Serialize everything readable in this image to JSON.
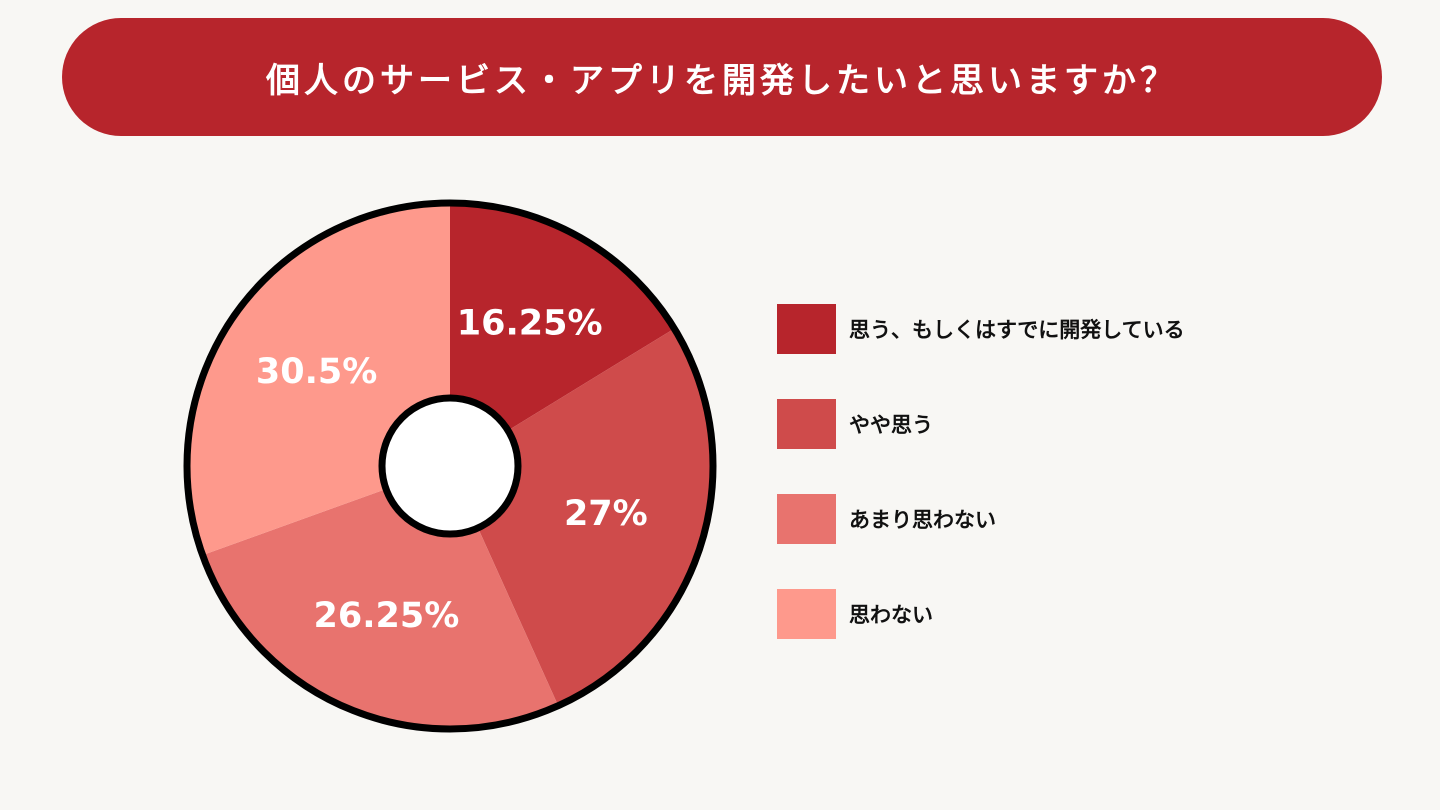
{
  "header": {
    "title": "個人のサービス・アプリを開発したいと思いますか？",
    "background": "#b7252c"
  },
  "chart_data": {
    "type": "pie",
    "variant": "donut",
    "title": "個人のサービス・アプリを開発したいと思いますか？",
    "categories": [
      "思う、もしくはすでに開発している",
      "やや思う",
      "あまり思わない",
      "思わない"
    ],
    "values": [
      16.25,
      27,
      26.25,
      30.5
    ],
    "labels": [
      "16.25%",
      "27%",
      "26.25%",
      "30.5%"
    ],
    "colors": [
      "#b7252c",
      "#cf4b4b",
      "#e8736e",
      "#fe998c"
    ],
    "legend_position": "right"
  }
}
